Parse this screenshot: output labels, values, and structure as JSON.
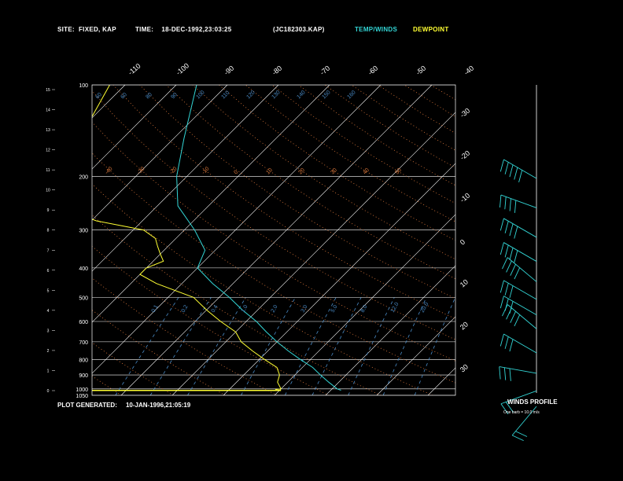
{
  "header": {
    "site_label": "SITE:",
    "site_value": "FIXED, KAP",
    "time_label": "TIME:",
    "time_value": "18-DEC-1992,23:03:25",
    "file": "(JC182303.KAP)",
    "temp_winds": "TEMP/WINDS",
    "dewpoint": "DEWPOINT"
  },
  "footer": {
    "generated_label": "PLOT GENERATED:",
    "generated_value": "10-JAN-1996,21:05:19",
    "winds_profile": "WINDS PROFILE",
    "barb_note": "One barb = 10.0 m/s"
  },
  "colors": {
    "temperature": "#33d6d6",
    "dewpoint": "#ffff33",
    "isotherm": "#ffffff",
    "dry_adiabat": "#e07a3c",
    "moist_adiabat": "#c8783c",
    "mixing_ratio": "#4a8cc8"
  },
  "chart_data": {
    "type": "line",
    "title": "",
    "pressure_labels": [
      "100",
      "200",
      "300",
      "400",
      "500",
      "600",
      "700",
      "800",
      "900",
      "1000",
      "1050"
    ],
    "pressure_levels": [
      100,
      200,
      300,
      400,
      500,
      600,
      700,
      800,
      900,
      1000,
      1050
    ],
    "height_km_labels": [
      "15",
      "14",
      "13",
      "12",
      "11",
      "10",
      "9",
      "8",
      "7",
      "6",
      "5",
      "4",
      "3",
      "2",
      "1",
      "0"
    ],
    "temp_top_labels": [
      "-110",
      "-100",
      "-90",
      "-80",
      "-70",
      "-60",
      "-50",
      "-40"
    ],
    "temp_right_labels": [
      "-30",
      "-20",
      "-10",
      "0",
      "10",
      "20",
      "30"
    ],
    "dry_adiabat_labels": [
      "-40",
      "-30",
      "-20",
      "-10",
      "0",
      "10",
      "20",
      "30",
      "40",
      "50"
    ],
    "moist_adiabat_labels": [
      "60",
      "60",
      "80",
      "90",
      "100",
      "110",
      "120",
      "130",
      "140",
      "150",
      "160"
    ],
    "mixing_ratio_labels": [
      "0.1",
      "0.2",
      "0.4",
      "1.0",
      "2.0",
      "3.0",
      "5.0",
      "8.0",
      "12.0",
      "20.0"
    ],
    "series": [
      {
        "name": "TEMP/WINDS",
        "profile": [
          [
            100,
            -86
          ],
          [
            150,
            -78
          ],
          [
            200,
            -72
          ],
          [
            250,
            -66
          ],
          [
            300,
            -58
          ],
          [
            350,
            -52
          ],
          [
            400,
            -50
          ],
          [
            450,
            -44
          ],
          [
            500,
            -38
          ],
          [
            550,
            -33
          ],
          [
            600,
            -28
          ],
          [
            650,
            -24
          ],
          [
            700,
            -20
          ],
          [
            750,
            -16
          ],
          [
            800,
            -12
          ],
          [
            850,
            -8
          ],
          [
            900,
            -5
          ],
          [
            950,
            -2
          ],
          [
            1000,
            1
          ],
          [
            1010,
            2
          ]
        ]
      },
      {
        "name": "DEWPOINT",
        "profile": [
          [
            100,
            -103
          ],
          [
            130,
            -100
          ],
          [
            160,
            -97
          ],
          [
            190,
            -95
          ],
          [
            200,
            -96
          ],
          [
            230,
            -93
          ],
          [
            260,
            -86
          ],
          [
            280,
            -79
          ],
          [
            300,
            -68
          ],
          [
            320,
            -64
          ],
          [
            340,
            -62
          ],
          [
            360,
            -60
          ],
          [
            380,
            -58
          ],
          [
            400,
            -60
          ],
          [
            420,
            -60
          ],
          [
            450,
            -55
          ],
          [
            500,
            -45
          ],
          [
            550,
            -40
          ],
          [
            600,
            -35
          ],
          [
            650,
            -30
          ],
          [
            700,
            -27
          ],
          [
            750,
            -23
          ],
          [
            800,
            -19
          ],
          [
            850,
            -15
          ],
          [
            900,
            -13
          ],
          [
            950,
            -12
          ],
          [
            1000,
            -10
          ],
          [
            1005,
            -11
          ]
        ]
      }
    ],
    "winds": [
      {
        "p": 160,
        "dir": 300,
        "spd": 45
      },
      {
        "p": 200,
        "dir": 290,
        "spd": 40
      },
      {
        "p": 250,
        "dir": 300,
        "spd": 40
      },
      {
        "p": 300,
        "dir": 300,
        "spd": 40
      },
      {
        "p": 350,
        "dir": 310,
        "spd": 35
      },
      {
        "p": 400,
        "dir": 300,
        "spd": 30
      },
      {
        "p": 450,
        "dir": 300,
        "spd": 30
      },
      {
        "p": 500,
        "dir": 310,
        "spd": 35
      },
      {
        "p": 600,
        "dir": 300,
        "spd": 30
      },
      {
        "p": 700,
        "dir": 280,
        "spd": 25
      },
      {
        "p": 800,
        "dir": 250,
        "spd": 15
      },
      {
        "p": 900,
        "dir": 220,
        "spd": 15
      }
    ]
  }
}
